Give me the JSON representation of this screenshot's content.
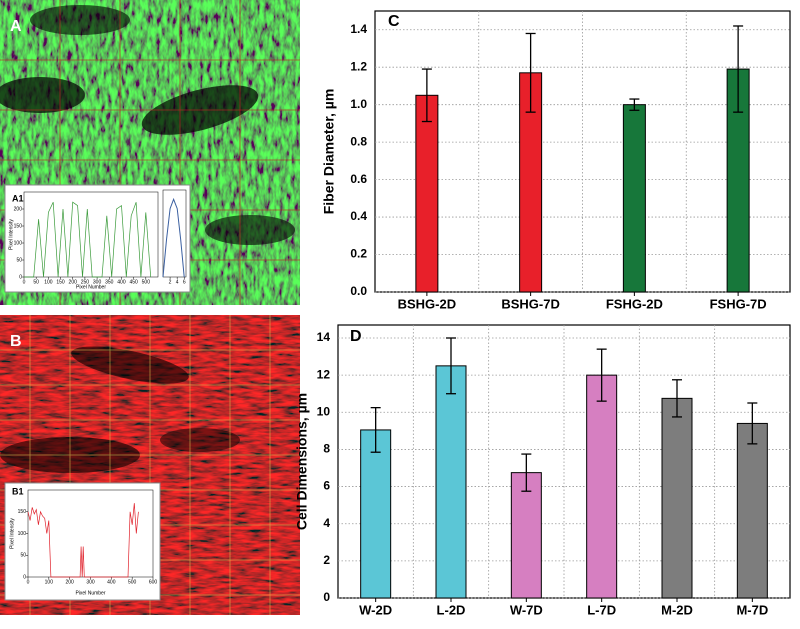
{
  "images": [
    {
      "label": "A"
    },
    {
      "label": "B"
    }
  ],
  "chart_data": [
    {
      "type": "bar",
      "panel": "C",
      "ylabel": "Fiber Diameter, µm",
      "categories": [
        "BSHG-2D",
        "BSHG-7D",
        "FSHG-2D",
        "FSHG-7D"
      ],
      "values": [
        1.05,
        1.17,
        1.0,
        1.19
      ],
      "errors": [
        0.14,
        0.21,
        0.03,
        0.23
      ],
      "colors": [
        "#e8202a",
        "#e8202a",
        "#17773a",
        "#17773a"
      ],
      "ylim": [
        0,
        1.5
      ],
      "yticks": [
        {
          "value": 0,
          "label": "0.0"
        },
        0.2,
        0.4,
        0.6,
        0.8,
        {
          "value": 1,
          "label": "1.0"
        },
        1.2,
        1.4
      ],
      "grid": true
    },
    {
      "type": "bar",
      "panel": "D",
      "ylabel": "Cell Dimensions, µm",
      "categories": [
        "W-2D",
        "L-2D",
        "W-7D",
        "L-7D",
        "M-2D",
        "M-7D"
      ],
      "values": [
        9.05,
        12.5,
        6.75,
        12.0,
        10.75,
        9.4
      ],
      "errors": [
        1.2,
        1.5,
        1.0,
        1.4,
        1.0,
        1.1
      ],
      "colors": [
        "#5bc6d6",
        "#5bc6d6",
        "#d67fc1",
        "#d67fc1",
        "#7d7d7d",
        "#7d7d7d"
      ],
      "ylim": [
        0,
        14.7
      ],
      "yticks": [
        0,
        2,
        4,
        6,
        8,
        10,
        12,
        14
      ],
      "grid": true
    },
    {
      "type": "line",
      "panel": "A1",
      "xlabel": "Pixel Number",
      "ylabel": "Pixel Intensity",
      "color": "#3a9a3a",
      "x": [
        0,
        20,
        40,
        60,
        80,
        100,
        120,
        140,
        160,
        180,
        200,
        220,
        240,
        260,
        280,
        300,
        320,
        340,
        360,
        380,
        400,
        420,
        440,
        460,
        480,
        500,
        520
      ],
      "values": [
        0,
        0,
        0,
        170,
        0,
        190,
        220,
        0,
        200,
        0,
        220,
        210,
        0,
        200,
        0,
        0,
        0,
        180,
        0,
        200,
        210,
        0,
        180,
        220,
        0,
        190,
        0
      ],
      "xlim": [
        0,
        550
      ],
      "xticks": [
        0,
        50,
        100,
        150,
        200,
        250,
        300,
        350,
        400,
        450,
        500
      ],
      "ylim": [
        0,
        250
      ],
      "yticks": [
        0,
        50,
        100,
        150,
        200
      ]
    },
    {
      "type": "line",
      "color": "#3a5fa0",
      "x": [
        0,
        1,
        2,
        3,
        4,
        5,
        6
      ],
      "values": [
        0,
        120,
        220,
        250,
        220,
        120,
        0
      ],
      "xlim": [
        0,
        6.5
      ],
      "xticks": [
        2,
        4,
        6
      ],
      "ylim": [
        0,
        280
      ]
    },
    {
      "type": "line",
      "panel": "B1",
      "xlabel": "Pixel Number",
      "ylabel": "Pixel Intensity",
      "color": "#e0202a",
      "x": [
        0,
        10,
        20,
        30,
        40,
        50,
        60,
        70,
        80,
        90,
        100,
        110,
        120,
        250,
        255,
        260,
        265,
        270,
        275,
        480,
        490,
        500,
        510,
        520,
        530
      ],
      "values": [
        150,
        130,
        160,
        145,
        155,
        120,
        150,
        140,
        135,
        100,
        130,
        0,
        0,
        0,
        70,
        0,
        70,
        0,
        0,
        0,
        150,
        120,
        170,
        100,
        150
      ],
      "xlim": [
        0,
        600
      ],
      "xticks": [
        0,
        100,
        200,
        300,
        400,
        500,
        600
      ],
      "ylim": [
        0,
        200
      ],
      "yticks": [
        0,
        50,
        100,
        150
      ]
    }
  ]
}
